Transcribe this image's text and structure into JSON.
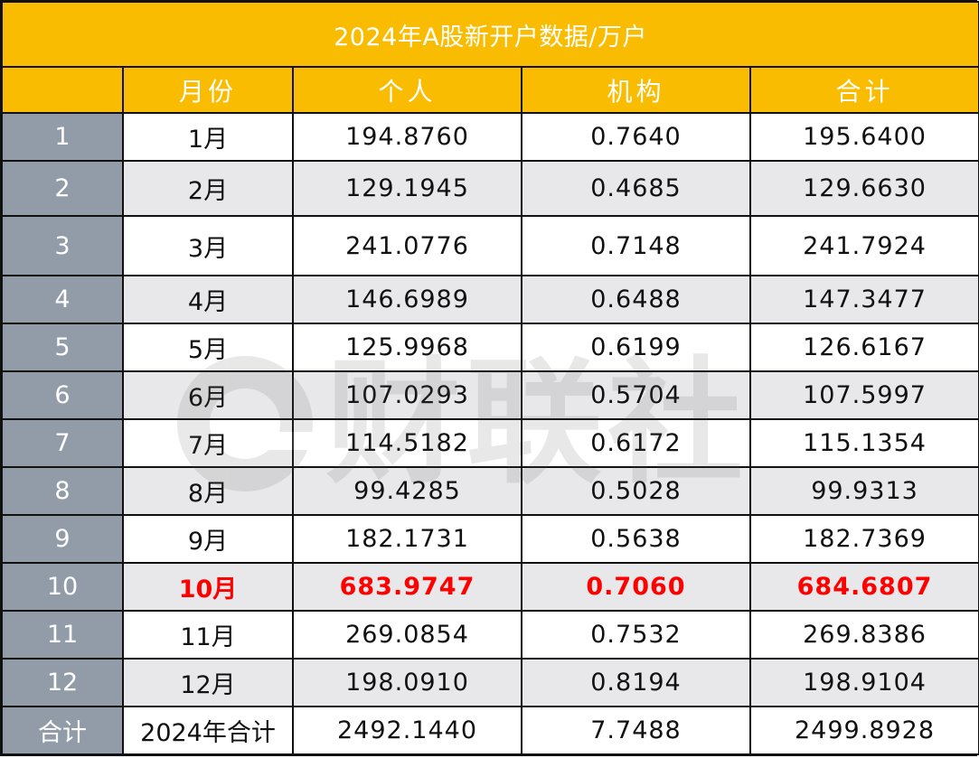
{
  "title": "2024年A股新开户数据/万户",
  "headers": [
    "",
    "月份",
    "个人",
    "机构",
    "合计"
  ],
  "rows": [
    {
      "index": "1",
      "month": "1月",
      "individual": "194.8760",
      "institution": "0.7640",
      "total": "195.6400",
      "highlight": false
    },
    {
      "index": "2",
      "month": "2月",
      "individual": "129.1945",
      "institution": "0.4685",
      "total": "129.6630",
      "highlight": false
    },
    {
      "index": "3",
      "month": "3月",
      "individual": "241.0776",
      "institution": "0.7148",
      "total": "241.7924",
      "highlight": false
    },
    {
      "index": "4",
      "month": "4月",
      "individual": "146.6989",
      "institution": "0.6488",
      "total": "147.3477",
      "highlight": false
    },
    {
      "index": "5",
      "month": "5月",
      "individual": "125.9968",
      "institution": "0.6199",
      "total": "126.6167",
      "highlight": false
    },
    {
      "index": "6",
      "month": "6月",
      "individual": "107.0293",
      "institution": "0.5704",
      "total": "107.5997",
      "highlight": false
    },
    {
      "index": "7",
      "month": "7月",
      "individual": "114.5182",
      "institution": "0.6172",
      "total": "115.1354",
      "highlight": false
    },
    {
      "index": "8",
      "month": "8月",
      "individual": "99.4285",
      "institution": "0.5028",
      "total": "99.9313",
      "highlight": false
    },
    {
      "index": "9",
      "month": "9月",
      "individual": "182.1731",
      "institution": "0.5638",
      "total": "182.7369",
      "highlight": false
    },
    {
      "index": "10",
      "month": "10月",
      "individual": "683.9747",
      "institution": "0.7060",
      "total": "684.6807",
      "highlight": true
    },
    {
      "index": "11",
      "month": "11月",
      "individual": "269.0854",
      "institution": "0.7532",
      "total": "269.8386",
      "highlight": false
    },
    {
      "index": "12",
      "month": "12月",
      "individual": "198.0910",
      "institution": "0.8194",
      "total": "198.9104",
      "highlight": false
    }
  ],
  "total_row": {
    "index": "合计",
    "month": "2024年合计",
    "individual": "2492.1440",
    "institution": "7.7488",
    "total": "2499.8928"
  },
  "watermark": {
    "text": "财联社"
  },
  "colors": {
    "header_bg": "#f9bc00",
    "index_bg": "#929ca8",
    "stripe_bg": "#e8e8ea",
    "highlight_text": "#ff0000"
  },
  "chart_data": {
    "type": "table",
    "title": "2024年A股新开户数据/万户",
    "columns": [
      "月份",
      "个人",
      "机构",
      "合计"
    ],
    "categories": [
      "1月",
      "2月",
      "3月",
      "4月",
      "5月",
      "6月",
      "7月",
      "8月",
      "9月",
      "10月",
      "11月",
      "12月"
    ],
    "series": [
      {
        "name": "个人",
        "values": [
          194.876,
          129.1945,
          241.0776,
          146.6989,
          125.9968,
          107.0293,
          114.5182,
          99.4285,
          182.1731,
          683.9747,
          269.0854,
          198.091
        ]
      },
      {
        "name": "机构",
        "values": [
          0.764,
          0.4685,
          0.7148,
          0.6488,
          0.6199,
          0.5704,
          0.6172,
          0.5028,
          0.5638,
          0.706,
          0.7532,
          0.8194
        ]
      },
      {
        "name": "合计",
        "values": [
          195.64,
          129.663,
          241.7924,
          147.3477,
          126.6167,
          107.5997,
          115.1354,
          99.9313,
          182.7369,
          684.6807,
          269.8386,
          198.9104
        ]
      }
    ],
    "totals": {
      "label": "2024年合计",
      "个人": 2492.144,
      "机构": 7.7488,
      "合计": 2499.8928
    },
    "highlighted_category": "10月"
  }
}
